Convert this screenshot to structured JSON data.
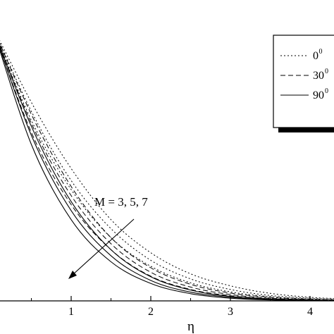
{
  "chart_data": {
    "type": "line",
    "title": "",
    "xlabel": "η",
    "ylabel": "",
    "xlim": [
      -0.9,
      4.3
    ],
    "ylim": [
      0,
      1
    ],
    "x_ticks": [
      1,
      2,
      3,
      4
    ],
    "x_tick_labels": [
      "1",
      "2",
      "3",
      "4"
    ],
    "grid": false,
    "legend_position": "top-right",
    "legend": [
      {
        "label": "0",
        "superscript": "0",
        "style": "dotted"
      },
      {
        "label": "30",
        "superscript": "0",
        "style": "dashed"
      },
      {
        "label": "90",
        "superscript": "0",
        "style": "solid"
      }
    ],
    "annotation": {
      "text": "M = 3, 5, 7"
    },
    "series": [
      {
        "name": "0⁰",
        "M": 3,
        "style": "dotted",
        "x": [
          0,
          0.5,
          1,
          1.5,
          2,
          2.5,
          3,
          3.5,
          4,
          4.3
        ],
        "y": [
          0.92,
          0.66,
          0.44,
          0.27,
          0.16,
          0.09,
          0.05,
          0.025,
          0.012,
          0.008
        ]
      },
      {
        "name": "0⁰",
        "M": 5,
        "style": "dotted",
        "x": [
          0,
          0.5,
          1,
          1.5,
          2,
          2.5,
          3,
          3.5,
          4,
          4.3
        ],
        "y": [
          0.92,
          0.63,
          0.4,
          0.24,
          0.135,
          0.073,
          0.038,
          0.018,
          0.009,
          0.006
        ]
      },
      {
        "name": "0⁰",
        "M": 7,
        "style": "dotted",
        "x": [
          0,
          0.5,
          1,
          1.5,
          2,
          2.5,
          3,
          3.5,
          4,
          4.3
        ],
        "y": [
          0.92,
          0.6,
          0.37,
          0.21,
          0.115,
          0.06,
          0.03,
          0.014,
          0.007,
          0.004
        ]
      },
      {
        "name": "30⁰",
        "M": 3,
        "style": "dashed",
        "x": [
          0,
          0.5,
          1,
          1.5,
          2,
          2.5,
          3,
          3.5,
          4,
          4.3
        ],
        "y": [
          0.92,
          0.62,
          0.38,
          0.21,
          0.11,
          0.055,
          0.026,
          0.012,
          0.005,
          0.003
        ]
      },
      {
        "name": "30⁰",
        "M": 5,
        "style": "dashed",
        "x": [
          0,
          0.5,
          1,
          1.5,
          2,
          2.5,
          3,
          3.5,
          4,
          4.3
        ],
        "y": [
          0.92,
          0.59,
          0.35,
          0.19,
          0.095,
          0.046,
          0.021,
          0.009,
          0.004,
          0.002
        ]
      },
      {
        "name": "30⁰",
        "M": 7,
        "style": "dashed",
        "x": [
          0,
          0.5,
          1,
          1.5,
          2,
          2.5,
          3,
          3.5,
          4,
          4.3
        ],
        "y": [
          0.92,
          0.56,
          0.32,
          0.17,
          0.082,
          0.038,
          0.017,
          0.007,
          0.003,
          0.001
        ]
      },
      {
        "name": "90⁰",
        "M": 3,
        "style": "solid",
        "x": [
          0,
          0.5,
          1,
          1.5,
          2,
          2.5,
          3,
          3.5,
          4,
          4.3
        ],
        "y": [
          0.92,
          0.58,
          0.33,
          0.17,
          0.08,
          0.036,
          0.015,
          0.006,
          0.002,
          0.001
        ]
      },
      {
        "name": "90⁰",
        "M": 5,
        "style": "solid",
        "x": [
          0,
          0.5,
          1,
          1.5,
          2,
          2.5,
          3,
          3.5,
          4,
          4.3
        ],
        "y": [
          0.92,
          0.55,
          0.3,
          0.15,
          0.068,
          0.029,
          0.012,
          0.004,
          0.002,
          0.001
        ]
      },
      {
        "name": "90⁰",
        "M": 7,
        "style": "solid",
        "x": [
          0,
          0.5,
          1,
          1.5,
          2,
          2.5,
          3,
          3.5,
          4,
          4.3
        ],
        "y": [
          0.92,
          0.52,
          0.27,
          0.13,
          0.058,
          0.024,
          0.009,
          0.003,
          0.001,
          0.0
        ]
      }
    ]
  }
}
